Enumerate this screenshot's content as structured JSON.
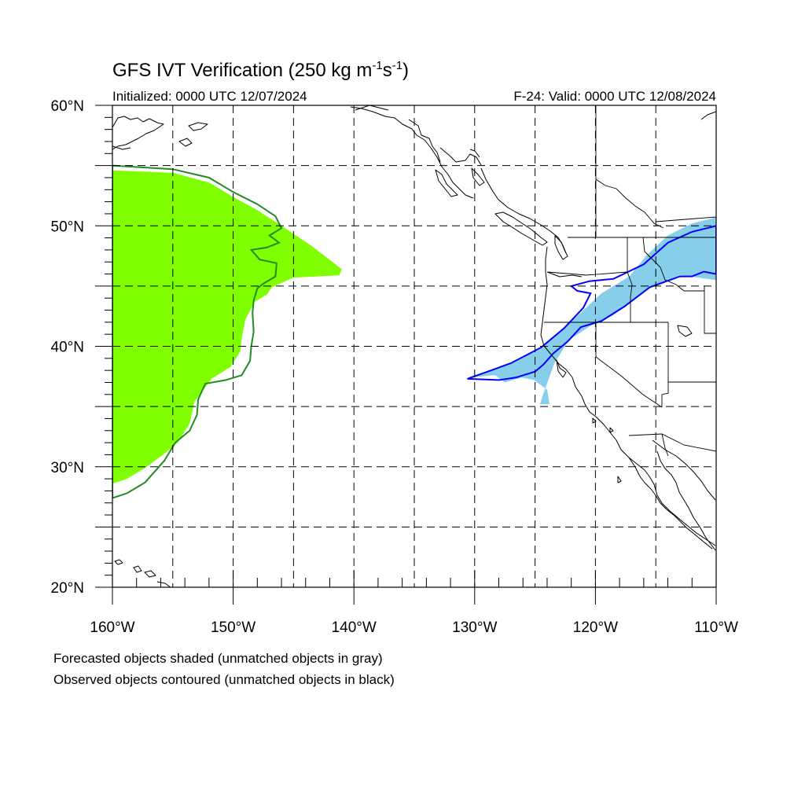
{
  "title_main": "GFS IVT Verification (250 kg m",
  "title_exp1": "-1",
  "title_mid": "s",
  "title_exp2": "-1",
  "title_end": ")",
  "init_label": "Initialized: 0000 UTC 12/07/2024",
  "valid_label": "F-24: Valid: 0000 UTC 12/08/2024",
  "footnote_line1": "Forecasted objects shaded (unmatched objects in gray)",
  "footnote_line2": "Observed objects contoured (unmatched objects in black)",
  "map": {
    "projection": "cylindrical-equidistant",
    "lon_range": [
      -160,
      -110
    ],
    "lat_range": [
      20,
      60
    ],
    "grid_lons": [
      -155,
      -150,
      -145,
      -140,
      -135,
      -130,
      -125,
      -120,
      -115
    ],
    "grid_lats": [
      25,
      30,
      35,
      40,
      45,
      50,
      55
    ],
    "lon_ticks": [
      {
        "value": -160,
        "label": "160°W"
      },
      {
        "value": -150,
        "label": "150°W"
      },
      {
        "value": -140,
        "label": "140°W"
      },
      {
        "value": -130,
        "label": "130°W"
      },
      {
        "value": -120,
        "label": "120°W"
      },
      {
        "value": -110,
        "label": "110°W"
      }
    ],
    "lat_ticks": [
      {
        "value": 60,
        "label": "60°N"
      },
      {
        "value": 50,
        "label": "50°N"
      },
      {
        "value": 40,
        "label": "40°N"
      },
      {
        "value": 30,
        "label": "30°N"
      },
      {
        "value": 20,
        "label": "20°N"
      }
    ]
  },
  "objects": {
    "forecast_object_west": {
      "fill": "#80ff00",
      "points": [
        [
          -160,
          54.6
        ],
        [
          -155,
          54.4
        ],
        [
          -152,
          53.6
        ],
        [
          -150,
          52.4
        ],
        [
          -148,
          51.3
        ],
        [
          -146,
          50.0
        ],
        [
          -143.6,
          48.4
        ],
        [
          -141,
          46.4
        ],
        [
          -141.2,
          45.9
        ],
        [
          -143,
          45.8
        ],
        [
          -145,
          45.7
        ],
        [
          -146.8,
          44.9
        ],
        [
          -147.2,
          44.3
        ],
        [
          -148.2,
          43.7
        ],
        [
          -149,
          42.2
        ],
        [
          -149.3,
          40.6
        ],
        [
          -149.4,
          39.6
        ],
        [
          -150.2,
          38.3
        ],
        [
          -151.8,
          37.3
        ],
        [
          -153.2,
          35.4
        ],
        [
          -153.6,
          33.6
        ],
        [
          -154.6,
          32.0
        ],
        [
          -155.8,
          31.0
        ],
        [
          -157.3,
          29.9
        ],
        [
          -158.8,
          29.0
        ],
        [
          -160,
          28.6
        ]
      ]
    },
    "observed_object_west": {
      "stroke": "#228b22",
      "points": [
        [
          -160,
          55.0
        ],
        [
          -155,
          54.7
        ],
        [
          -152,
          54.0
        ],
        [
          -150,
          52.8
        ],
        [
          -148,
          51.8
        ],
        [
          -146.5,
          50.8
        ],
        [
          -146,
          49.8
        ],
        [
          -147,
          49.2
        ],
        [
          -146.2,
          48.6
        ],
        [
          -147.2,
          48.2
        ],
        [
          -148.5,
          48.0
        ],
        [
          -147.8,
          47.2
        ],
        [
          -146.4,
          46.9
        ],
        [
          -146.5,
          45.8
        ],
        [
          -147.5,
          45.2
        ],
        [
          -148,
          44.8
        ],
        [
          -148.3,
          43.8
        ],
        [
          -148.4,
          42.8
        ],
        [
          -148.3,
          41.2
        ],
        [
          -148.5,
          40.0
        ],
        [
          -148.6,
          38.8
        ],
        [
          -149.3,
          37.6
        ],
        [
          -150.6,
          37.2
        ],
        [
          -152.3,
          36.9
        ],
        [
          -152.9,
          35.6
        ],
        [
          -153.0,
          34.3
        ],
        [
          -153.6,
          33.0
        ],
        [
          -154.8,
          32.0
        ],
        [
          -155.7,
          30.5
        ],
        [
          -157.3,
          28.7
        ],
        [
          -158.8,
          27.8
        ],
        [
          -160,
          27.4
        ]
      ]
    },
    "forecast_object_east": {
      "fill": "#87ceeb",
      "points": [
        [
          -130.6,
          37.4
        ],
        [
          -127,
          38.6
        ],
        [
          -124.5,
          39.8
        ],
        [
          -122.8,
          41.4
        ],
        [
          -121.2,
          42.8
        ],
        [
          -119.5,
          44.4
        ],
        [
          -117.2,
          45.8
        ],
        [
          -115.7,
          47.6
        ],
        [
          -114.0,
          49.2
        ],
        [
          -112,
          50.2
        ],
        [
          -110,
          50.7
        ],
        [
          -110,
          45.5
        ],
        [
          -111.5,
          45.7
        ],
        [
          -113,
          45.9
        ],
        [
          -115.2,
          45.0
        ],
        [
          -116.8,
          44.0
        ],
        [
          -118.5,
          42.6
        ],
        [
          -120.4,
          41.7
        ],
        [
          -122.2,
          40.5
        ],
        [
          -123.4,
          38.6
        ],
        [
          -123.9,
          37.2
        ],
        [
          -124.3,
          36.1
        ],
        [
          -124.6,
          35.2
        ],
        [
          -123.8,
          35.2
        ],
        [
          -124.0,
          36.4
        ],
        [
          -125.1,
          37.2
        ],
        [
          -126.1,
          37.4
        ],
        [
          -127.5,
          37.0
        ],
        [
          -128.3,
          37.6
        ],
        [
          -130.6,
          37.4
        ]
      ]
    },
    "observed_object_east": {
      "stroke": "#0000ff",
      "points": [
        [
          -130.6,
          37.3
        ],
        [
          -127,
          38.6
        ],
        [
          -124.5,
          39.9
        ],
        [
          -122.6,
          41.5
        ],
        [
          -121,
          43.2
        ],
        [
          -120.4,
          44.4
        ],
        [
          -121.5,
          44.6
        ],
        [
          -122.0,
          45.0
        ],
        [
          -120.5,
          45.4
        ],
        [
          -118.5,
          45.6
        ],
        [
          -116.0,
          46.8
        ],
        [
          -114,
          48.6
        ],
        [
          -112,
          49.5
        ],
        [
          -110,
          50.0
        ],
        [
          -110,
          46.0
        ],
        [
          -111,
          46.2
        ],
        [
          -112.0,
          45.8
        ],
        [
          -113,
          45.8
        ],
        [
          -115.5,
          44.9
        ],
        [
          -117.6,
          43.3
        ],
        [
          -119.5,
          42.1
        ],
        [
          -121.2,
          41.6
        ],
        [
          -122.3,
          40.4
        ],
        [
          -123.5,
          39.4
        ],
        [
          -124.3,
          38.5
        ],
        [
          -125.0,
          37.9
        ],
        [
          -126.6,
          37.4
        ],
        [
          -128.0,
          37.2
        ],
        [
          -130.6,
          37.3
        ]
      ]
    }
  }
}
